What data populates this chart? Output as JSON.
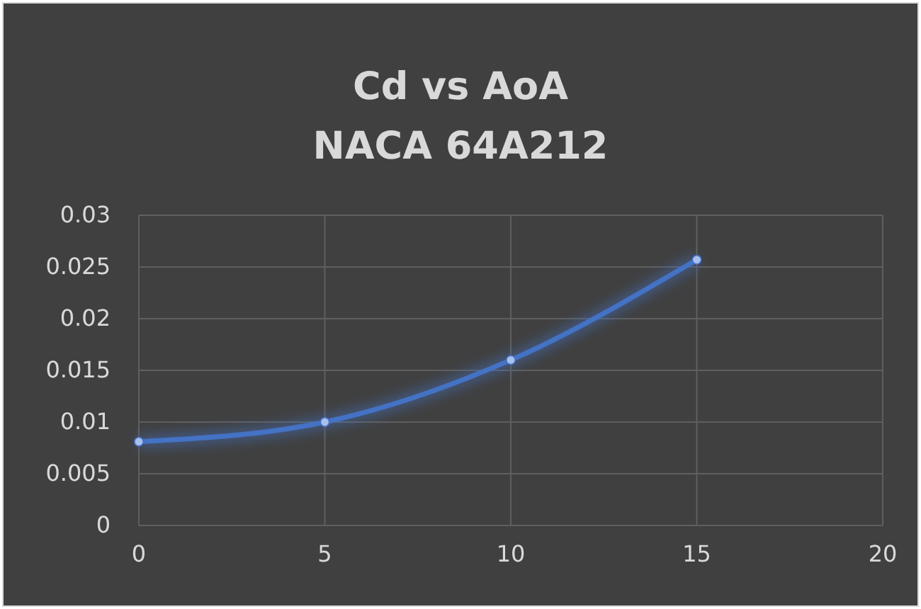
{
  "chart_data": {
    "type": "line",
    "title": "Cd vs AoA\nNACA 64A212",
    "x": [
      0,
      5,
      10,
      15
    ],
    "series": [
      {
        "color": "#4472c4",
        "values": [
          0.0081,
          0.01,
          0.016,
          0.0257
        ]
      }
    ],
    "xlim": [
      0,
      20
    ],
    "xticks": [
      0,
      5,
      10,
      15,
      20
    ],
    "ylim": [
      0,
      0.03
    ],
    "yticks": [
      0,
      0.005,
      0.01,
      0.015,
      0.02,
      0.025,
      0.03
    ],
    "grid": true,
    "marker": "circle",
    "legend": false
  }
}
